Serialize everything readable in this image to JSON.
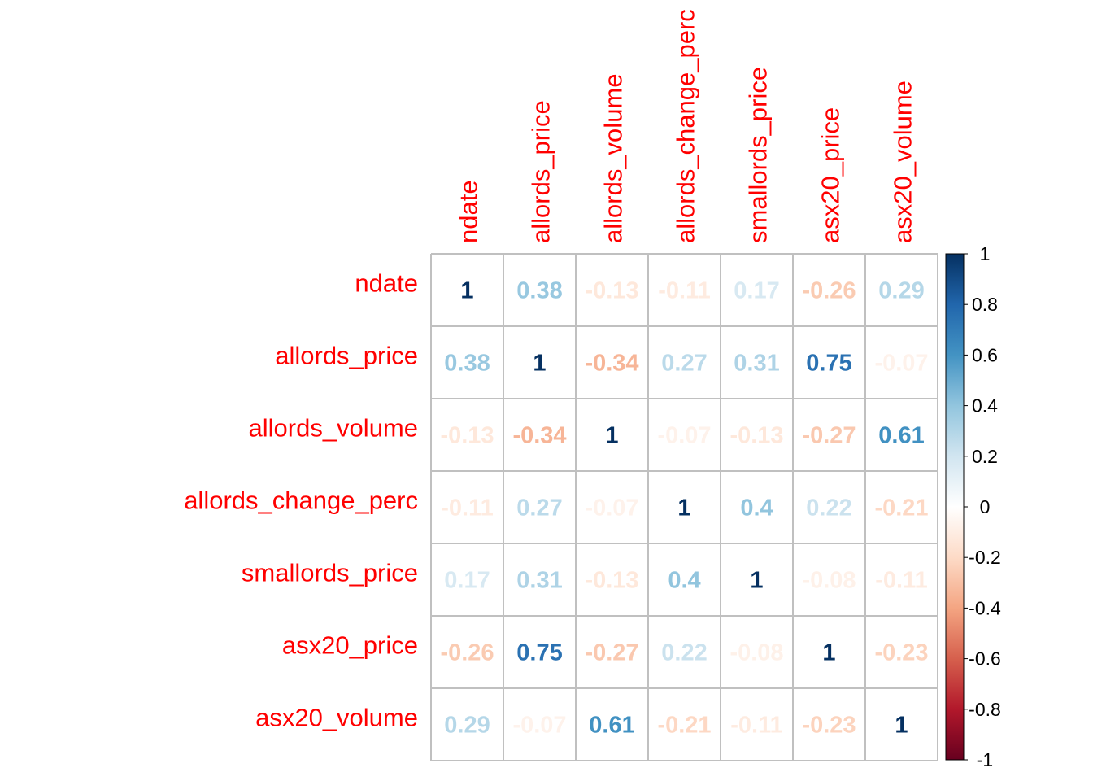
{
  "chart_data": {
    "type": "heatmap",
    "variables": [
      "ndate",
      "allords_price",
      "allords_volume",
      "allords_change_perc",
      "smallords_price",
      "asx20_price",
      "asx20_volume"
    ],
    "matrix": [
      [
        1,
        0.38,
        -0.13,
        -0.11,
        0.17,
        -0.26,
        0.29
      ],
      [
        0.38,
        1,
        -0.34,
        0.27,
        0.31,
        0.75,
        -0.07
      ],
      [
        -0.13,
        -0.34,
        1,
        -0.07,
        -0.13,
        -0.27,
        0.61
      ],
      [
        -0.11,
        0.27,
        -0.07,
        1,
        0.4,
        0.22,
        -0.21
      ],
      [
        0.17,
        0.31,
        -0.13,
        0.4,
        1,
        -0.08,
        -0.11
      ],
      [
        -0.26,
        0.75,
        -0.27,
        0.22,
        -0.08,
        1,
        -0.23
      ],
      [
        0.29,
        -0.07,
        0.61,
        -0.21,
        -0.11,
        -0.23,
        1
      ]
    ],
    "legend": {
      "ticks": [
        "1",
        "0.8",
        "0.6",
        "0.4",
        "0.2",
        "0",
        "-0.2",
        "-0.4",
        "-0.6",
        "-0.8",
        "-1"
      ],
      "range": [
        -1,
        1
      ],
      "position": "right"
    },
    "grid": true,
    "colors": {
      "label": "#ff0000",
      "grid": "#c0c0c0",
      "negative_end": "#67001f",
      "positive_end": "#053061"
    }
  }
}
